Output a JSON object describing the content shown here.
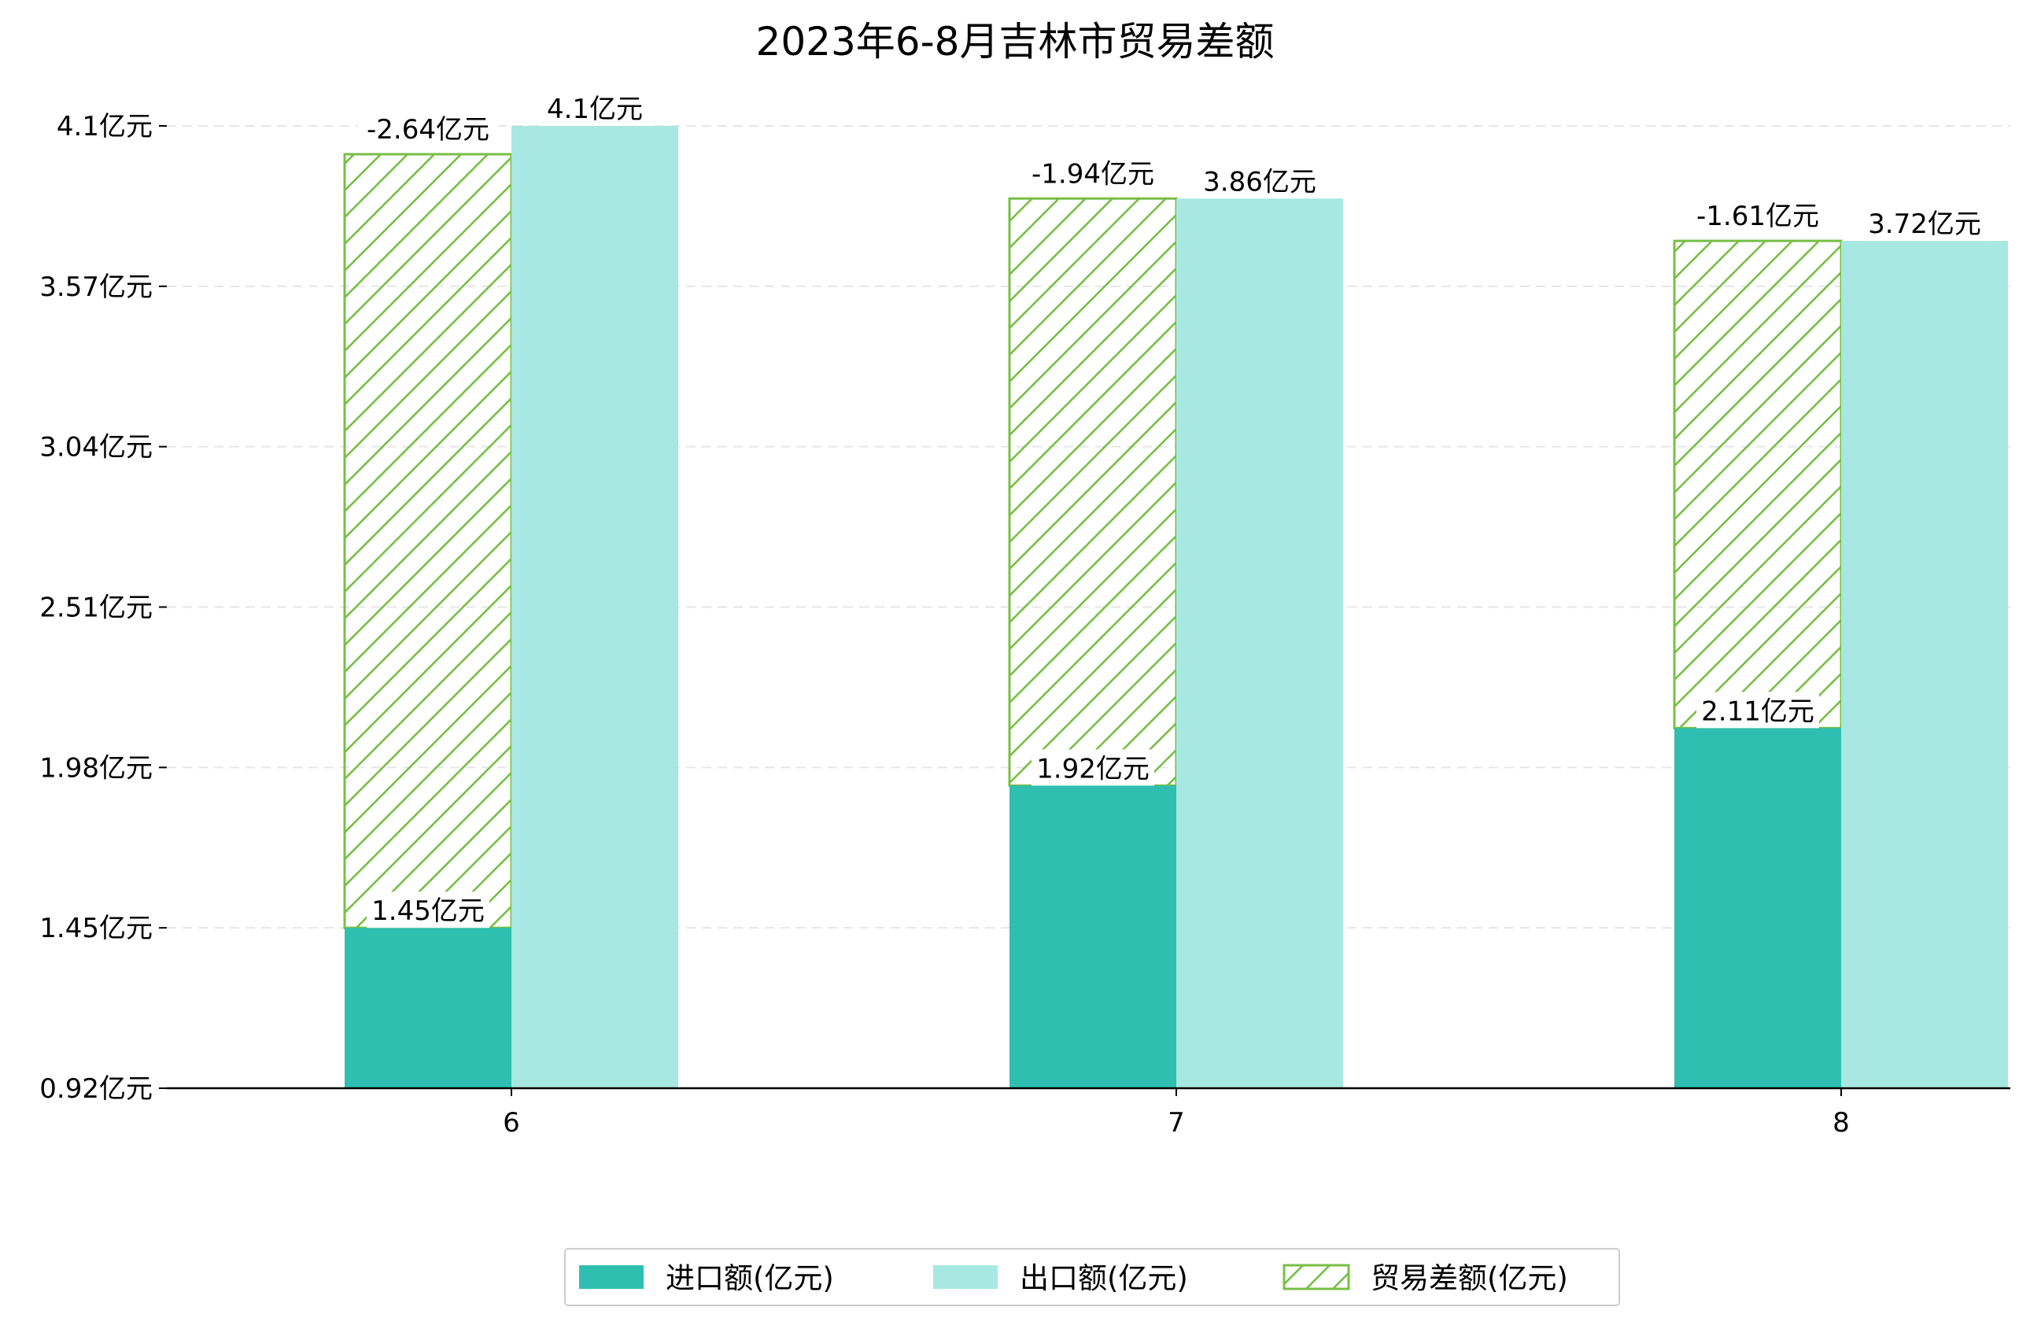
{
  "chart_data": {
    "type": "bar",
    "title": "2023年6-8月吉林市贸易差额",
    "xlabel": "",
    "ylabel": "",
    "categories": [
      "6",
      "7",
      "8"
    ],
    "ylim": [
      0.92,
      4.1
    ],
    "yticks": [
      "0.92亿元",
      "1.45亿元",
      "1.98亿元",
      "2.51亿元",
      "3.04亿元",
      "3.57亿元",
      "4.1亿元"
    ],
    "ytick_values": [
      0.92,
      1.45,
      1.98,
      2.51,
      3.04,
      3.57,
      4.1
    ],
    "grid": "horizontal dashed",
    "legend_position": "bottom-center",
    "series": [
      {
        "name": "进口额(亿元)",
        "values": [
          1.45,
          1.92,
          2.11
        ],
        "labels": [
          "1.45亿元",
          "1.92亿元",
          "2.11亿元"
        ],
        "color": "#2fbfb0"
      },
      {
        "name": "出口额(亿元)",
        "values": [
          4.1,
          3.86,
          3.72
        ],
        "labels": [
          "4.1亿元",
          "3.86亿元",
          "3.72亿元"
        ],
        "color": "#a8e8e2"
      },
      {
        "name": "贸易差额(亿元)",
        "values": [
          -2.64,
          -1.94,
          -1.61
        ],
        "labels": [
          "-2.64亿元",
          "-1.94亿元",
          "-1.61亿元"
        ],
        "color": "#78bf46"
      }
    ]
  }
}
